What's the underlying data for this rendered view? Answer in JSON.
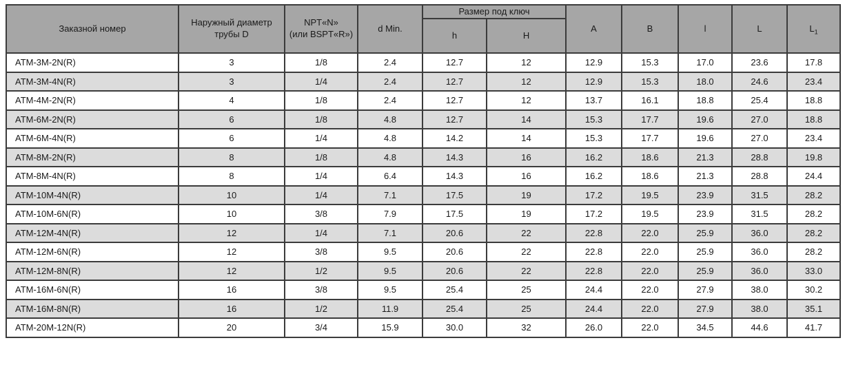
{
  "table": {
    "headers": {
      "order_number": "Заказной номер",
      "outer_diameter_line1": "Наружный диаметр",
      "outer_diameter_line2": "трубы D",
      "npt_line1": "NPT«N»",
      "npt_line2": "(или BSPT«R»)",
      "d_min": "d Min.",
      "wrench_size": "Размер под ключ",
      "h_small": "h",
      "h_big": "H",
      "a": "A",
      "b": "B",
      "l_small": "l",
      "l_big": "L",
      "l1_base": "L",
      "l1_sub": "1"
    },
    "rows": [
      [
        "ATM-3M-2N(R)",
        "3",
        "1/8",
        "2.4",
        "12.7",
        "12",
        "12.9",
        "15.3",
        "17.0",
        "23.6",
        "17.8"
      ],
      [
        "ATM-3M-4N(R)",
        "3",
        "1/4",
        "2.4",
        "12.7",
        "12",
        "12.9",
        "15.3",
        "18.0",
        "24.6",
        "23.4"
      ],
      [
        "ATM-4M-2N(R)",
        "4",
        "1/8",
        "2.4",
        "12.7",
        "12",
        "13.7",
        "16.1",
        "18.8",
        "25.4",
        "18.8"
      ],
      [
        "ATM-6M-2N(R)",
        "6",
        "1/8",
        "4.8",
        "12.7",
        "14",
        "15.3",
        "17.7",
        "19.6",
        "27.0",
        "18.8"
      ],
      [
        "ATM-6M-4N(R)",
        "6",
        "1/4",
        "4.8",
        "14.2",
        "14",
        "15.3",
        "17.7",
        "19.6",
        "27.0",
        "23.4"
      ],
      [
        "ATM-8M-2N(R)",
        "8",
        "1/8",
        "4.8",
        "14.3",
        "16",
        "16.2",
        "18.6",
        "21.3",
        "28.8",
        "19.8"
      ],
      [
        "ATM-8M-4N(R)",
        "8",
        "1/4",
        "6.4",
        "14.3",
        "16",
        "16.2",
        "18.6",
        "21.3",
        "28.8",
        "24.4"
      ],
      [
        "ATM-10M-4N(R)",
        "10",
        "1/4",
        "7.1",
        "17.5",
        "19",
        "17.2",
        "19.5",
        "23.9",
        "31.5",
        "28.2"
      ],
      [
        "ATM-10M-6N(R)",
        "10",
        "3/8",
        "7.9",
        "17.5",
        "19",
        "17.2",
        "19.5",
        "23.9",
        "31.5",
        "28.2"
      ],
      [
        "ATM-12M-4N(R)",
        "12",
        "1/4",
        "7.1",
        "20.6",
        "22",
        "22.8",
        "22.0",
        "25.9",
        "36.0",
        "28.2"
      ],
      [
        "ATM-12M-6N(R)",
        "12",
        "3/8",
        "9.5",
        "20.6",
        "22",
        "22.8",
        "22.0",
        "25.9",
        "36.0",
        "28.2"
      ],
      [
        "ATM-12M-8N(R)",
        "12",
        "1/2",
        "9.5",
        "20.6",
        "22",
        "22.8",
        "22.0",
        "25.9",
        "36.0",
        "33.0"
      ],
      [
        "ATM-16M-6N(R)",
        "16",
        "3/8",
        "9.5",
        "25.4",
        "25",
        "24.4",
        "22.0",
        "27.9",
        "38.0",
        "30.2"
      ],
      [
        "ATM-16M-8N(R)",
        "16",
        "1/2",
        "11.9",
        "25.4",
        "25",
        "24.4",
        "22.0",
        "27.9",
        "38.0",
        "35.1"
      ],
      [
        "ATM-20M-12N(R)",
        "20",
        "3/4",
        "15.9",
        "30.0",
        "32",
        "26.0",
        "22.0",
        "34.5",
        "44.6",
        "41.7"
      ]
    ]
  },
  "colors": {
    "header_bg": "#a6a6a6",
    "stripe_bg": "#dcdcdc",
    "border": "#3b3b3b",
    "text": "#1a1a1a"
  }
}
